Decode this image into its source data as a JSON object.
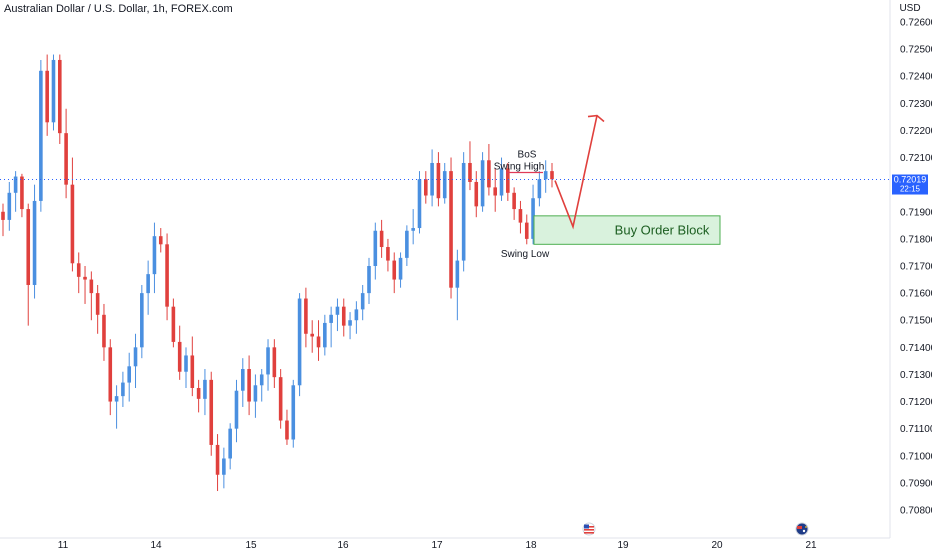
{
  "header": {
    "title": "Australian Dollar / U.S. Dollar, 1h, FOREX.com"
  },
  "price_axis": {
    "currency_label": "USD",
    "current_price": "0.72019",
    "countdown": "22:15",
    "ticks": [
      "0.72600",
      "0.72500",
      "0.72400",
      "0.72300",
      "0.72200",
      "0.72100",
      "0.71900",
      "0.71800",
      "0.71700",
      "0.71600",
      "0.71500",
      "0.71400",
      "0.71300",
      "0.71200",
      "0.71100",
      "0.71000",
      "0.70900",
      "0.70800"
    ]
  },
  "time_axis": {
    "ticks": [
      "11",
      "14",
      "15",
      "16",
      "17",
      "18",
      "19",
      "20",
      "21"
    ]
  },
  "annotations": {
    "bos": "BoS",
    "swing_high": "Swing High",
    "swing_low": "Swing Low",
    "order_block": "Buy Order Block"
  },
  "colors": {
    "up": "#4a8fe0",
    "down": "#e0403d",
    "annotation": "#e03a57",
    "zone_fill": "#d9f2dd",
    "zone_border": "#4caf50",
    "zone_text": "#1b5e20",
    "price_tag": "#2962ff"
  },
  "chart_data": {
    "type": "candlestick",
    "title": "Australian Dollar / U.S. Dollar, 1h, FOREX.com",
    "ylim": [
      0.7075,
      0.7265
    ],
    "series": [
      {
        "name": "",
        "ohlc": [
          [
            0.719,
            0.7193,
            0.7181,
            0.7187
          ],
          [
            0.7187,
            0.7201,
            0.7183,
            0.7197
          ],
          [
            0.7197,
            0.7205,
            0.719,
            0.7203
          ],
          [
            0.7203,
            0.7204,
            0.7188,
            0.7191
          ],
          [
            0.7191,
            0.7193,
            0.7148,
            0.7163
          ],
          [
            0.7163,
            0.72,
            0.7158,
            0.7194
          ],
          [
            0.7194,
            0.7246,
            0.719,
            0.7242
          ],
          [
            0.7242,
            0.7248,
            0.7218,
            0.7223
          ],
          [
            0.7223,
            0.7248,
            0.722,
            0.7246
          ],
          [
            0.7246,
            0.7248,
            0.7215,
            0.7219
          ],
          [
            0.7219,
            0.7228,
            0.7195,
            0.72
          ],
          [
            0.72,
            0.721,
            0.7168,
            0.7171
          ],
          [
            0.7171,
            0.7175,
            0.716,
            0.7166
          ],
          [
            0.7166,
            0.717,
            0.7156,
            0.7165
          ],
          [
            0.7165,
            0.7168,
            0.715,
            0.716
          ],
          [
            0.716,
            0.7163,
            0.7145,
            0.7152
          ],
          [
            0.7152,
            0.7156,
            0.7135,
            0.714
          ],
          [
            0.714,
            0.7143,
            0.7115,
            0.712
          ],
          [
            0.712,
            0.7126,
            0.711,
            0.7122
          ],
          [
            0.7122,
            0.7131,
            0.7118,
            0.7127
          ],
          [
            0.7127,
            0.7138,
            0.712,
            0.7133
          ],
          [
            0.7133,
            0.7145,
            0.7125,
            0.714
          ],
          [
            0.714,
            0.7163,
            0.7136,
            0.716
          ],
          [
            0.716,
            0.7172,
            0.7152,
            0.7167
          ],
          [
            0.7167,
            0.7186,
            0.716,
            0.7181
          ],
          [
            0.7181,
            0.7184,
            0.7175,
            0.7178
          ],
          [
            0.7178,
            0.7182,
            0.715,
            0.7155
          ],
          [
            0.7155,
            0.7158,
            0.714,
            0.7142
          ],
          [
            0.7142,
            0.7148,
            0.7128,
            0.7131
          ],
          [
            0.7131,
            0.714,
            0.7125,
            0.7137
          ],
          [
            0.7137,
            0.7144,
            0.7122,
            0.7125
          ],
          [
            0.7125,
            0.7128,
            0.7116,
            0.7121
          ],
          [
            0.7121,
            0.7132,
            0.7115,
            0.7128
          ],
          [
            0.7128,
            0.7131,
            0.71,
            0.7104
          ],
          [
            0.7104,
            0.7108,
            0.7087,
            0.7093
          ],
          [
            0.7093,
            0.7103,
            0.7088,
            0.7099
          ],
          [
            0.7099,
            0.7112,
            0.7095,
            0.711
          ],
          [
            0.711,
            0.7128,
            0.7105,
            0.7124
          ],
          [
            0.7124,
            0.7136,
            0.7118,
            0.7132
          ],
          [
            0.7132,
            0.7137,
            0.7115,
            0.712
          ],
          [
            0.712,
            0.713,
            0.7114,
            0.7126
          ],
          [
            0.7126,
            0.7132,
            0.712,
            0.713
          ],
          [
            0.713,
            0.7143,
            0.7124,
            0.714
          ],
          [
            0.714,
            0.7143,
            0.7125,
            0.7129
          ],
          [
            0.7129,
            0.7132,
            0.711,
            0.7113
          ],
          [
            0.7113,
            0.7117,
            0.7104,
            0.7106
          ],
          [
            0.7106,
            0.7128,
            0.7103,
            0.7126
          ],
          [
            0.7126,
            0.716,
            0.7122,
            0.7158
          ],
          [
            0.7158,
            0.7162,
            0.714,
            0.7145
          ],
          [
            0.7145,
            0.715,
            0.7138,
            0.7144
          ],
          [
            0.7144,
            0.715,
            0.7135,
            0.714
          ],
          [
            0.714,
            0.7152,
            0.7137,
            0.7149
          ],
          [
            0.7149,
            0.7155,
            0.714,
            0.7152
          ],
          [
            0.7152,
            0.7158,
            0.7146,
            0.7155
          ],
          [
            0.7155,
            0.7158,
            0.7144,
            0.7148
          ],
          [
            0.7148,
            0.7153,
            0.7143,
            0.715
          ],
          [
            0.715,
            0.7157,
            0.7145,
            0.7154
          ],
          [
            0.7154,
            0.7163,
            0.715,
            0.716
          ],
          [
            0.716,
            0.7173,
            0.7156,
            0.717
          ],
          [
            0.717,
            0.7186,
            0.7165,
            0.7183
          ],
          [
            0.7183,
            0.7187,
            0.7173,
            0.7177
          ],
          [
            0.7177,
            0.718,
            0.7168,
            0.7172
          ],
          [
            0.7172,
            0.7175,
            0.716,
            0.7165
          ],
          [
            0.7165,
            0.7175,
            0.7162,
            0.7173
          ],
          [
            0.7173,
            0.7185,
            0.717,
            0.7183
          ],
          [
            0.7183,
            0.7191,
            0.7178,
            0.7184
          ],
          [
            0.7184,
            0.7205,
            0.7182,
            0.7202
          ],
          [
            0.7202,
            0.7205,
            0.7193,
            0.7196
          ],
          [
            0.7196,
            0.7213,
            0.7192,
            0.7208
          ],
          [
            0.7208,
            0.7212,
            0.7192,
            0.7195
          ],
          [
            0.7195,
            0.7208,
            0.7193,
            0.7205
          ],
          [
            0.7205,
            0.721,
            0.7158,
            0.7162
          ],
          [
            0.7162,
            0.7176,
            0.715,
            0.7172
          ],
          [
            0.7172,
            0.7212,
            0.7168,
            0.7208
          ],
          [
            0.7208,
            0.7216,
            0.7198,
            0.7201
          ],
          [
            0.7201,
            0.7205,
            0.7188,
            0.7192
          ],
          [
            0.7192,
            0.7212,
            0.719,
            0.7209
          ],
          [
            0.7209,
            0.7215,
            0.7196,
            0.7199
          ],
          [
            0.7199,
            0.7206,
            0.719,
            0.7196
          ],
          [
            0.7196,
            0.721,
            0.7194,
            0.7206
          ],
          [
            0.7206,
            0.7208,
            0.7194,
            0.7197
          ],
          [
            0.7197,
            0.7199,
            0.7187,
            0.7191
          ],
          [
            0.7191,
            0.7194,
            0.7182,
            0.7186
          ],
          [
            0.7186,
            0.7189,
            0.7178,
            0.718
          ],
          [
            0.718,
            0.72,
            0.7178,
            0.7195
          ],
          [
            0.7195,
            0.7205,
            0.7192,
            0.7202
          ],
          [
            0.7202,
            0.7209,
            0.7197,
            0.7205
          ],
          [
            0.7205,
            0.7208,
            0.7199,
            0.7202
          ]
        ]
      }
    ]
  }
}
